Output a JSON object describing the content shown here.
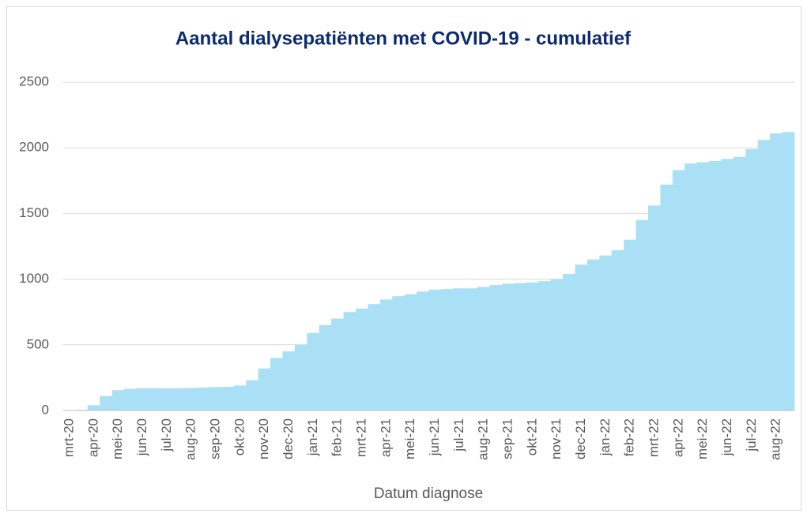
{
  "chart_data": {
    "type": "bar",
    "title": "Aantal dialysepatiënten met COVID-19 - cumulatief",
    "xlabel": "Datum diagnose",
    "categories": [
      "mrt-20",
      null,
      "apr-20",
      null,
      "mei-20",
      null,
      "jun-20",
      null,
      "jul-20",
      null,
      "aug-20",
      null,
      "sep-20",
      null,
      "okt-20",
      null,
      "nov-20",
      null,
      "dec-20",
      null,
      "jan-21",
      null,
      "feb-21",
      null,
      "mrt-21",
      null,
      "apr-21",
      null,
      "mei-21",
      null,
      "jun-21",
      null,
      "jul-21",
      null,
      "aug-21",
      null,
      "sep-21",
      null,
      "okt-21",
      null,
      "nov-21",
      null,
      "dec-21",
      null,
      "jan-22",
      null,
      "feb-22",
      null,
      "mrt-22",
      null,
      "apr-22",
      null,
      "mei-22",
      null,
      "jun-22",
      null,
      "jul-22",
      null,
      "aug-22",
      null
    ],
    "values": [
      0,
      5,
      40,
      110,
      155,
      165,
      170,
      170,
      170,
      170,
      172,
      175,
      178,
      180,
      190,
      230,
      320,
      400,
      450,
      500,
      590,
      650,
      700,
      750,
      775,
      810,
      845,
      870,
      885,
      905,
      920,
      925,
      930,
      930,
      940,
      955,
      965,
      970,
      975,
      985,
      1000,
      1040,
      1110,
      1150,
      1180,
      1220,
      1300,
      1450,
      1560,
      1720,
      1830,
      1880,
      1890,
      1900,
      1915,
      1930,
      1990,
      2060,
      2110,
      2120
    ],
    "color": "#a9e0f6",
    "ylim": [
      0,
      2500
    ],
    "yticks": [
      0,
      500,
      1000,
      1500,
      2000,
      2500
    ],
    "grid": true
  }
}
